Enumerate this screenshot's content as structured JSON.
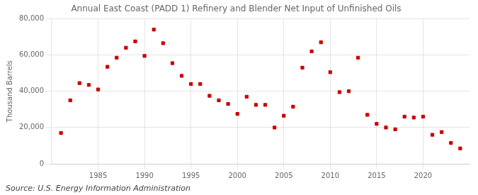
{
  "chart_data": {
    "type": "scatter",
    "title": "Annual East Coast (PADD 1) Refinery and Blender Net Input of Unfinished Oils",
    "y_label": "Thousand Barrels",
    "annotations": [
      "Source: U.S. Energy Information Administration"
    ],
    "x": [
      1981,
      1982,
      1983,
      1984,
      1985,
      1986,
      1987,
      1988,
      1989,
      1990,
      1991,
      1992,
      1993,
      1994,
      1995,
      1996,
      1997,
      1998,
      1999,
      2000,
      2001,
      2002,
      2003,
      2004,
      2005,
      2006,
      2007,
      2008,
      2009,
      2010,
      2011,
      2012,
      2013,
      2014,
      2015,
      2016,
      2017,
      2018,
      2019,
      2020,
      2021,
      2022,
      2023,
      2024
    ],
    "values": [
      17000,
      35000,
      44500,
      43500,
      41000,
      53500,
      58500,
      64000,
      67500,
      59500,
      74000,
      66500,
      55500,
      48500,
      44000,
      44000,
      37500,
      35000,
      33000,
      27500,
      37000,
      32500,
      32500,
      20000,
      26500,
      31500,
      53000,
      62000,
      67000,
      50500,
      39500,
      40000,
      58500,
      27000,
      22000,
      20000,
      19000,
      26000,
      25500,
      26000,
      16000,
      17500,
      11500,
      8500
    ],
    "color": "#cc0000",
    "marker": "square",
    "xlim": [
      1980,
      2025
    ],
    "xticks": [
      1985,
      1990,
      1995,
      2000,
      2005,
      2010,
      2015,
      2020
    ],
    "ylim": [
      0,
      80000
    ],
    "yticks": [
      0,
      {
        "value": 20000,
        "label": "20,000"
      },
      {
        "value": 40000,
        "label": "40,000"
      },
      {
        "value": 60000,
        "label": "60,000"
      },
      {
        "value": 80000,
        "label": "80,000"
      }
    ],
    "grid": true
  }
}
